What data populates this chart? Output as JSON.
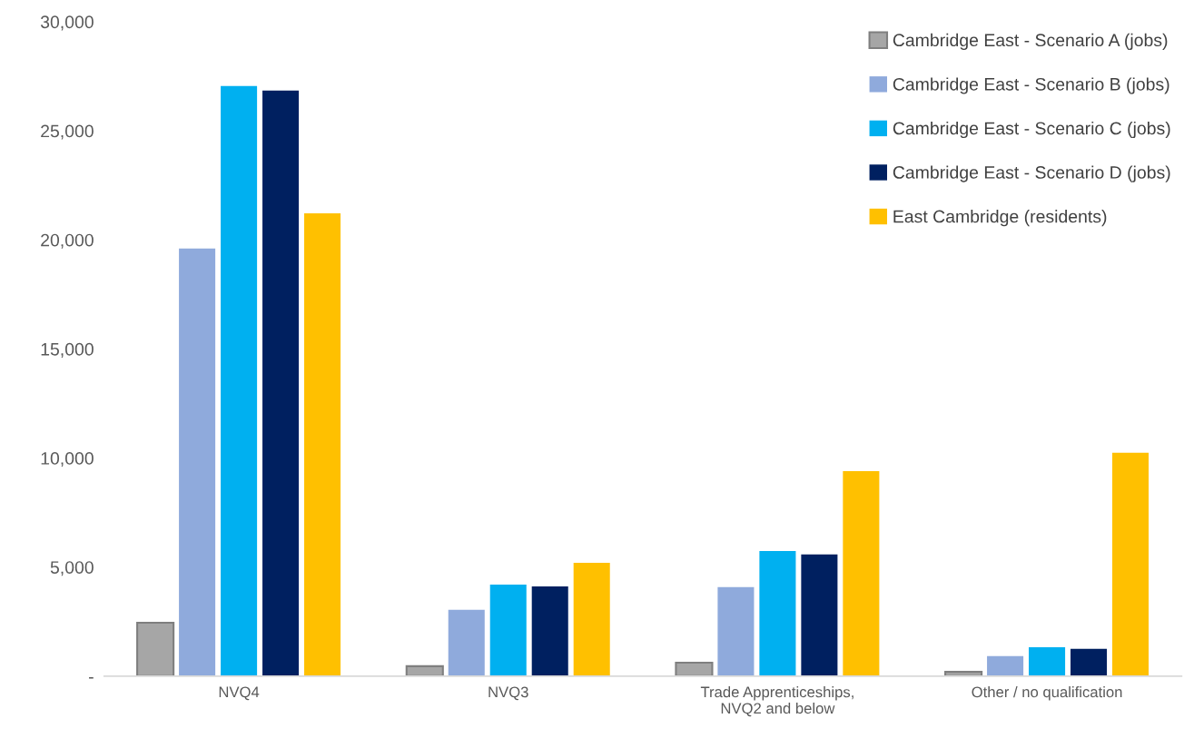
{
  "chart_data": {
    "type": "bar",
    "categories": [
      "NVQ4",
      "NVQ3",
      "Trade Apprenticeships,\nNVQ2 and below",
      "Other / no qualification"
    ],
    "series": [
      {
        "name": "Cambridge East - Scenario A (jobs)",
        "color": "#a6a6a6",
        "values": [
          2450,
          460,
          620,
          200
        ]
      },
      {
        "name": "Cambridge East - Scenario B (jobs)",
        "color": "#8faadc",
        "values": [
          19600,
          3040,
          4080,
          920
        ]
      },
      {
        "name": "Cambridge East - Scenario C (jobs)",
        "color": "#00b0f0",
        "values": [
          27050,
          4200,
          5740,
          1330
        ]
      },
      {
        "name": "Cambridge East - Scenario D (jobs)",
        "color": "#002060",
        "values": [
          26840,
          4120,
          5580,
          1250
        ]
      },
      {
        "name": "East Cambridge (residents)",
        "color": "#ffc000",
        "values": [
          21220,
          5200,
          9400,
          10240
        ]
      }
    ],
    "ylim": [
      0,
      30000
    ],
    "yticks": [
      {
        "value": 0,
        "label": "-"
      },
      {
        "value": 5000,
        "label": "5,000"
      },
      {
        "value": 10000,
        "label": "10,000"
      },
      {
        "value": 15000,
        "label": "15,000"
      },
      {
        "value": 20000,
        "label": "20,000"
      },
      {
        "value": 25000,
        "label": "25,000"
      },
      {
        "value": 30000,
        "label": "30,000"
      }
    ],
    "grid": false,
    "legend": "top right"
  }
}
